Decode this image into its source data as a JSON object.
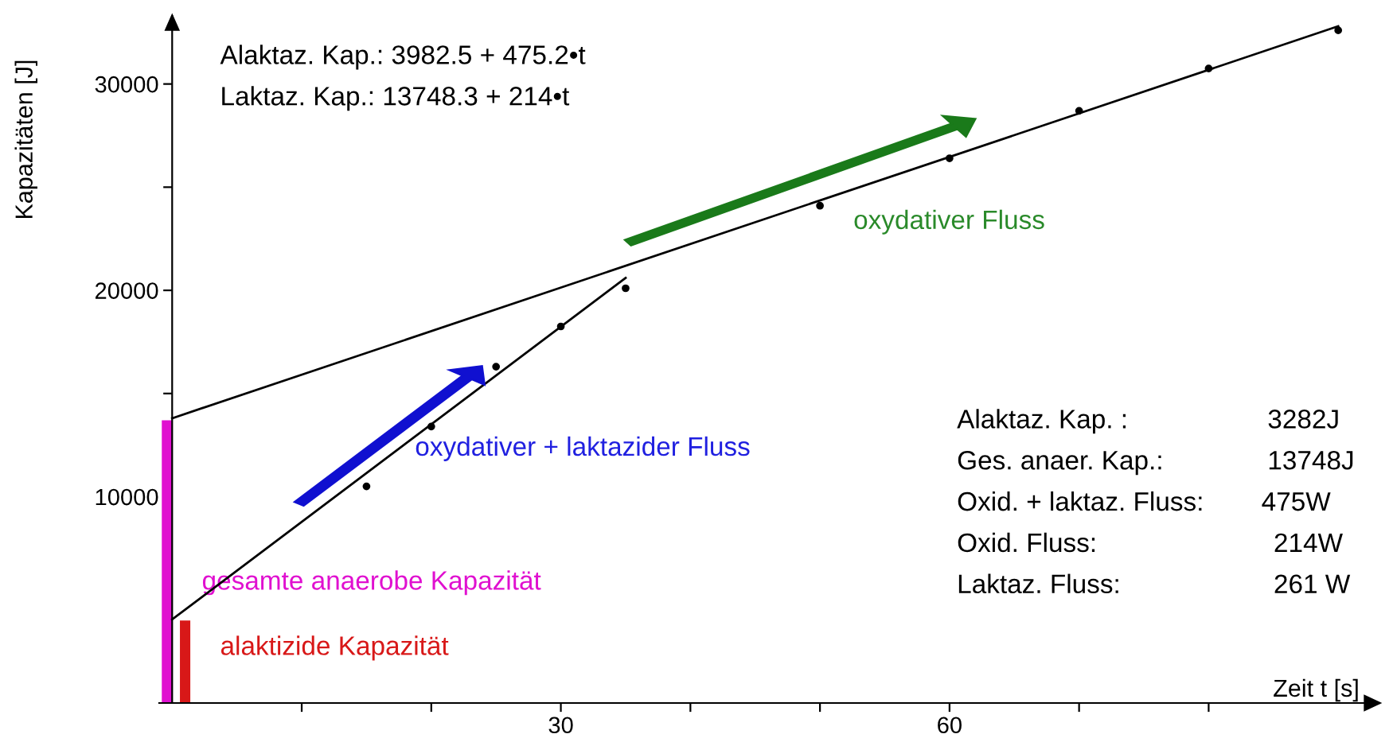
{
  "chart_data": {
    "type": "scatter",
    "xlabel": "Zeit t [s]",
    "ylabel": "Kapazitäten [J]",
    "xlim": [
      -1,
      93
    ],
    "ylim": [
      0,
      33300
    ],
    "xticks": [
      {
        "value": 10,
        "label": null
      },
      {
        "value": 20,
        "label": null
      },
      30,
      {
        "value": 40,
        "label": null
      },
      {
        "value": 50,
        "label": null
      },
      60,
      {
        "value": 70,
        "label": null
      },
      {
        "value": 80,
        "label": null
      }
    ],
    "yticks": [
      {
        "value": 5000,
        "label": null
      },
      10000,
      {
        "value": 15000,
        "label": null
      },
      20000,
      {
        "value": 25000,
        "label": null
      },
      30000
    ],
    "grid": false,
    "marker": "circle",
    "series": [
      {
        "type": "bar",
        "name": "gesamte anaerobe Kapazität",
        "color": "#e010d0",
        "x": [
          -0.4
        ],
        "values": [
          13700
        ]
      },
      {
        "type": "bar",
        "name": "alaktizide Kapazität",
        "color": "#d81818",
        "x": [
          1.0
        ],
        "values": [
          4000
        ]
      },
      {
        "type": "line",
        "marker": "none",
        "color": "#000000",
        "x": [
          0,
          35
        ],
        "values": [
          4050,
          20600
        ]
      },
      {
        "type": "line",
        "marker": "none",
        "color": "#000000",
        "x": [
          0,
          90
        ],
        "values": [
          13800,
          32800
        ]
      },
      {
        "color": "#000000",
        "x": [
          15,
          20,
          25,
          30,
          35
        ],
        "values": [
          10500,
          13400,
          16300,
          18250,
          20100
        ]
      },
      {
        "color": "#000000",
        "x": [
          50,
          60,
          70,
          80,
          90
        ],
        "values": [
          24100,
          26400,
          28700,
          30750,
          32600
        ]
      }
    ],
    "annotations": [
      "Alaktaz. Kap.: 3982.5 + 475.2•t",
      "Laktaz. Kap.: 13748.3 + 214•t",
      "oxydativer + laktazider Fluss",
      "oxydativer Fluss",
      "Alaktaz. Kap. :",
      "Ges. anaer. Kap.:",
      "Oxid. + laktaz. Fluss:",
      "Oxid. Fluss:",
      "Laktaz. Fluss:",
      "3282J",
      "13748J",
      "475W",
      "214W",
      "261 W"
    ]
  }
}
